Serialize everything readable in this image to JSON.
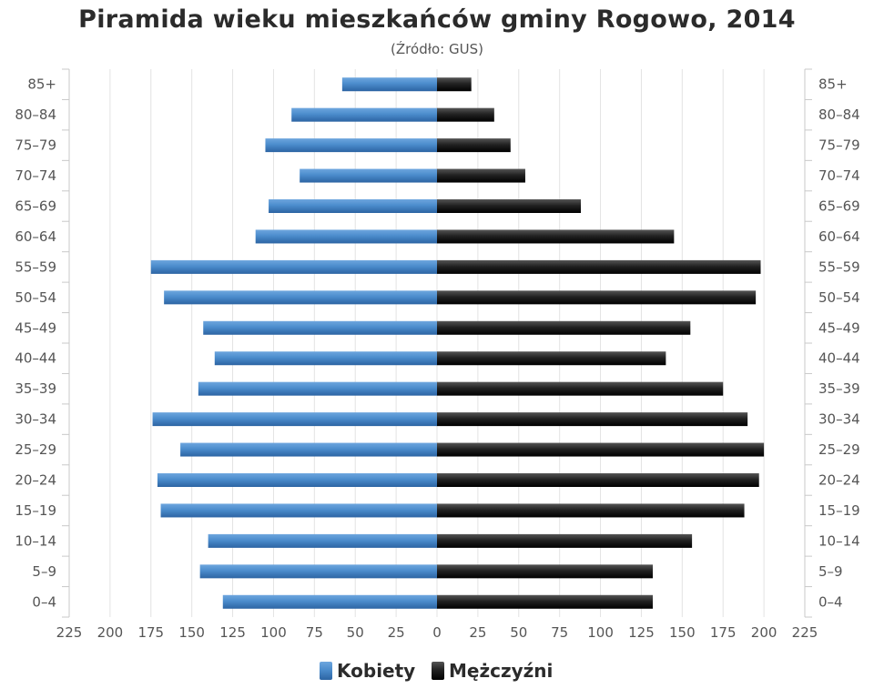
{
  "chart_data": {
    "type": "bar",
    "orientation": "horizontal",
    "title": "Piramida wieku mieszkańców gminy Rogowo, 2014",
    "subtitle": "(Źródło: GUS)",
    "categories": [
      "85+",
      "80–84",
      "75–79",
      "70–74",
      "65–69",
      "60–64",
      "55–59",
      "50–54",
      "45–49",
      "40–44",
      "35–39",
      "30–34",
      "25–29",
      "20–24",
      "15–19",
      "10–14",
      "5–9",
      "0–4"
    ],
    "series": [
      {
        "name": "Kobiety",
        "color": "#3f7fc0",
        "side": "left",
        "values": [
          58,
          89,
          105,
          84,
          103,
          111,
          175,
          167,
          143,
          136,
          146,
          174,
          157,
          171,
          169,
          140,
          145,
          131
        ]
      },
      {
        "name": "Mężczyźni",
        "color": "#1a1a1a",
        "side": "right",
        "values": [
          21,
          35,
          45,
          54,
          88,
          145,
          198,
          195,
          155,
          140,
          175,
          190,
          200,
          197,
          188,
          156,
          132,
          132
        ]
      }
    ],
    "x_ticks": [
      "225",
      "200",
      "175",
      "150",
      "125",
      "100",
      "75",
      "50",
      "25",
      "0",
      "25",
      "50",
      "75",
      "100",
      "125",
      "150",
      "175",
      "200",
      "225"
    ],
    "xlim": [
      -225,
      225
    ],
    "grid": true,
    "legend_position": "bottom-center"
  }
}
